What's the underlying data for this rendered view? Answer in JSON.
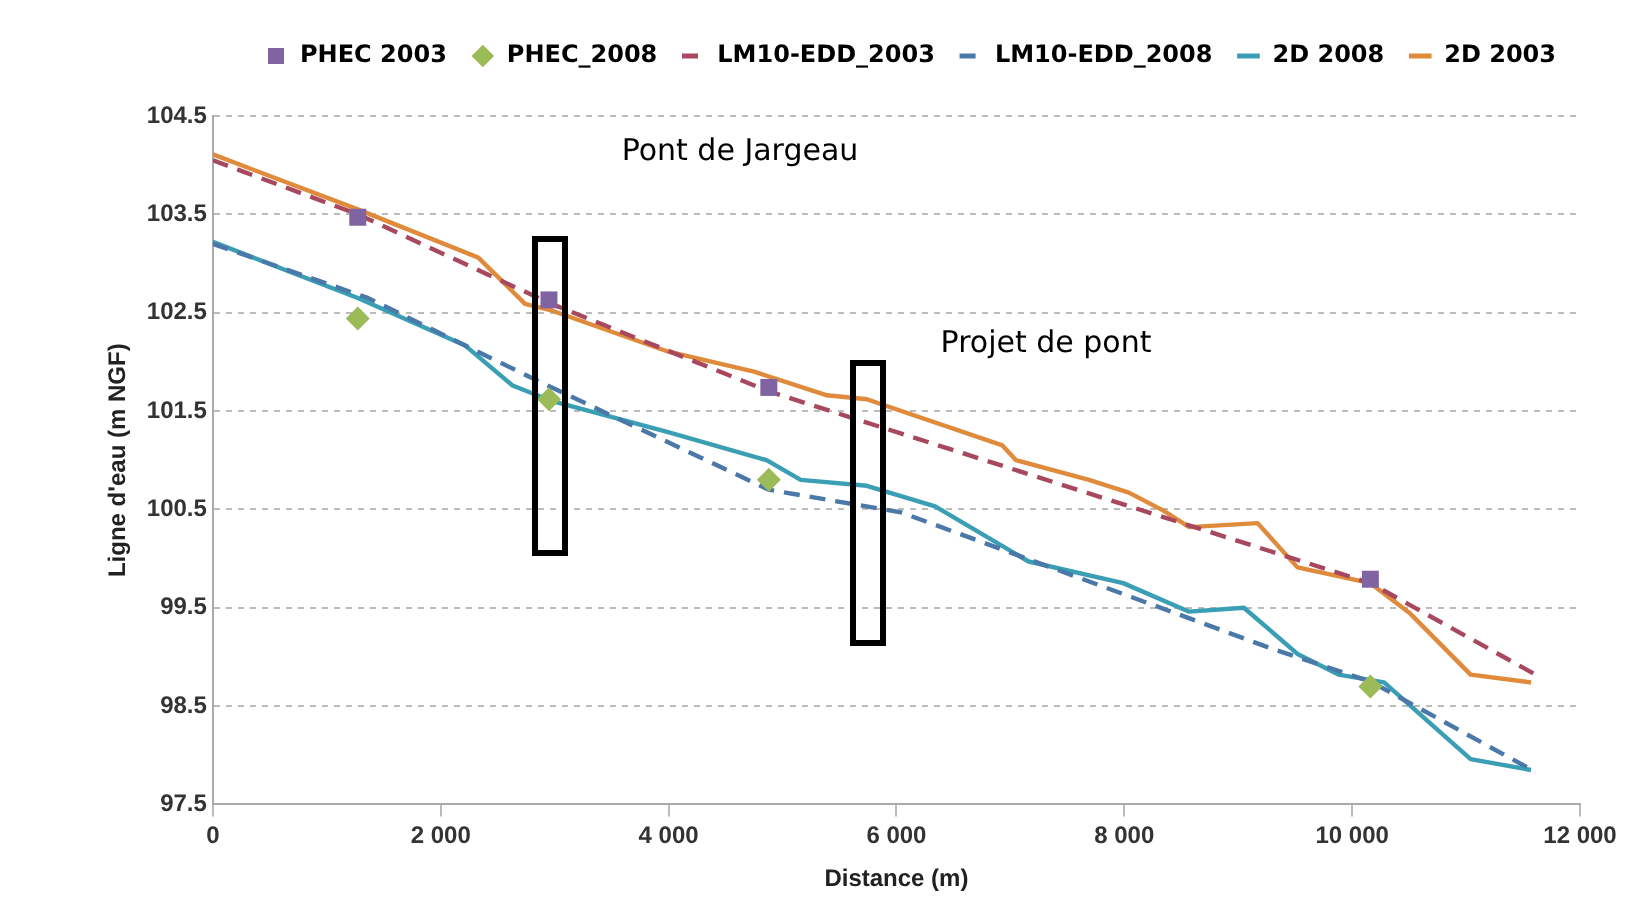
{
  "chart_data": {
    "type": "line",
    "xlabel": "Distance (m)",
    "ylabel": "Ligne d'eau (m NGF)",
    "xlim": [
      0,
      12000
    ],
    "xticks": [
      {
        "value": 0,
        "label": "0"
      },
      {
        "value": 2000,
        "label": "2 000"
      },
      {
        "value": 4000,
        "label": "4 000"
      },
      {
        "value": 6000,
        "label": "6 000"
      },
      {
        "value": 8000,
        "label": "8 000"
      },
      {
        "value": 10000,
        "label": "10 000"
      },
      {
        "value": 12000,
        "label": "12 000"
      }
    ],
    "ylim": [
      97.5,
      104.5
    ],
    "yticks": [
      97.5,
      98.5,
      99.5,
      100.5,
      101.5,
      102.5,
      103.5,
      104.5
    ],
    "grid": "y",
    "legend": "top",
    "annotations": [
      "Pont de Jargeau",
      "Projet de pont"
    ],
    "series": [
      {
        "name": "PHEC 2003",
        "type": "scatter",
        "marker": "square",
        "color": "#8064a2",
        "x": [
          1272,
          2950,
          4880,
          10160
        ],
        "values": [
          103.47,
          102.63,
          101.74,
          99.79
        ]
      },
      {
        "name": "PHEC_2008",
        "type": "scatter",
        "marker": "diamond",
        "color": "#9bbb59",
        "x": [
          1272,
          2950,
          4880,
          10160
        ],
        "values": [
          102.44,
          101.62,
          100.8,
          98.7
        ]
      },
      {
        "name": "LM10-EDD_2003",
        "type": "line",
        "marker": "none",
        "line_style": "dashed",
        "color": "#a8485e",
        "x": [
          0,
          1272,
          2950,
          4880,
          10160,
          11640
        ],
        "values": [
          104.05,
          103.5,
          102.6,
          101.7,
          99.75,
          98.8
        ]
      },
      {
        "name": "LM10-EDD_2008",
        "type": "line",
        "marker": "none",
        "line_style": "dashed",
        "color": "#4a78a8",
        "x": [
          0,
          1360,
          2810,
          4880,
          6040,
          9280,
          10160,
          11610
        ],
        "values": [
          103.2,
          102.65,
          101.83,
          100.7,
          100.47,
          99.09,
          98.75,
          97.83
        ]
      },
      {
        "name": "2D 2008",
        "type": "line",
        "marker": "none",
        "line_style": "solid",
        "color": "#3a9fb4",
        "x": [
          0,
          1272,
          2210,
          2630,
          2980,
          3980,
          4860,
          5160,
          5740,
          6340,
          7160,
          7990,
          8570,
          9050,
          9520,
          9880,
          10280,
          11040,
          11570
        ],
        "values": [
          103.22,
          102.65,
          102.17,
          101.76,
          101.6,
          101.29,
          101.0,
          100.8,
          100.74,
          100.53,
          99.97,
          99.75,
          99.46,
          99.5,
          99.03,
          98.82,
          98.74,
          97.96,
          97.85
        ]
      },
      {
        "name": "2D 2003",
        "type": "line",
        "marker": "none",
        "line_style": "solid",
        "color": "#e08a3c",
        "x": [
          0,
          1272,
          2330,
          2740,
          2980,
          3980,
          4750,
          5390,
          5740,
          6930,
          7050,
          7690,
          8040,
          8340,
          8570,
          9170,
          9520,
          10160,
          10510,
          11040,
          11570
        ],
        "values": [
          104.11,
          103.55,
          103.06,
          102.59,
          102.52,
          102.11,
          101.9,
          101.66,
          101.62,
          101.15,
          101.0,
          100.8,
          100.67,
          100.49,
          100.32,
          100.36,
          99.91,
          99.75,
          99.44,
          98.82,
          98.74
        ]
      }
    ]
  }
}
